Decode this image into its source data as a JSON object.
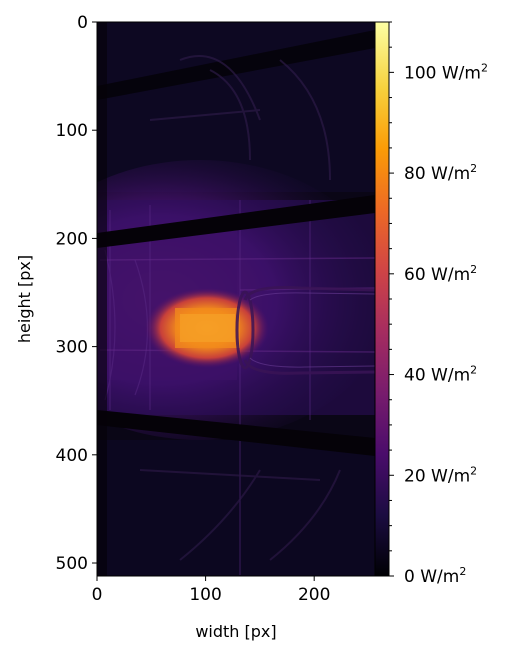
{
  "plot": {
    "xlabel": "width [px]",
    "ylabel": "height [px]",
    "x_ticks": [
      {
        "value": 0,
        "label": "0"
      },
      {
        "value": 100,
        "label": "100"
      },
      {
        "value": 200,
        "label": "200"
      }
    ],
    "y_ticks": [
      {
        "value": 0,
        "label": "0"
      },
      {
        "value": 100,
        "label": "100"
      },
      {
        "value": 200,
        "label": "200"
      },
      {
        "value": 300,
        "label": "300"
      },
      {
        "value": 400,
        "label": "400"
      },
      {
        "value": 500,
        "label": "500"
      }
    ],
    "xlim": [
      0,
      256
    ],
    "ylim": [
      512,
      0
    ],
    "image": "thermal camera image of a machine interior, inferno colormap, bright hot spot near center-left"
  },
  "colorbar": {
    "colormap": "inferno",
    "range": [
      0,
      110
    ],
    "ticks": [
      {
        "value": 0,
        "label": "0 W/m",
        "sup": "2"
      },
      {
        "value": 20,
        "label": "20 W/m",
        "sup": "2"
      },
      {
        "value": 40,
        "label": "40 W/m",
        "sup": "2"
      },
      {
        "value": 60,
        "label": "60 W/m",
        "sup": "2"
      },
      {
        "value": 80,
        "label": "80 W/m",
        "sup": "2"
      },
      {
        "value": 100,
        "label": "100 W/m",
        "sup": "2"
      }
    ],
    "minor_step": 5
  },
  "colors": {
    "inferno_stops": [
      "#000004",
      "#1b0c41",
      "#4a0c6b",
      "#781c6d",
      "#a52c60",
      "#cf4446",
      "#ed6925",
      "#fb9b06",
      "#f7d13d",
      "#fcffa4"
    ]
  }
}
